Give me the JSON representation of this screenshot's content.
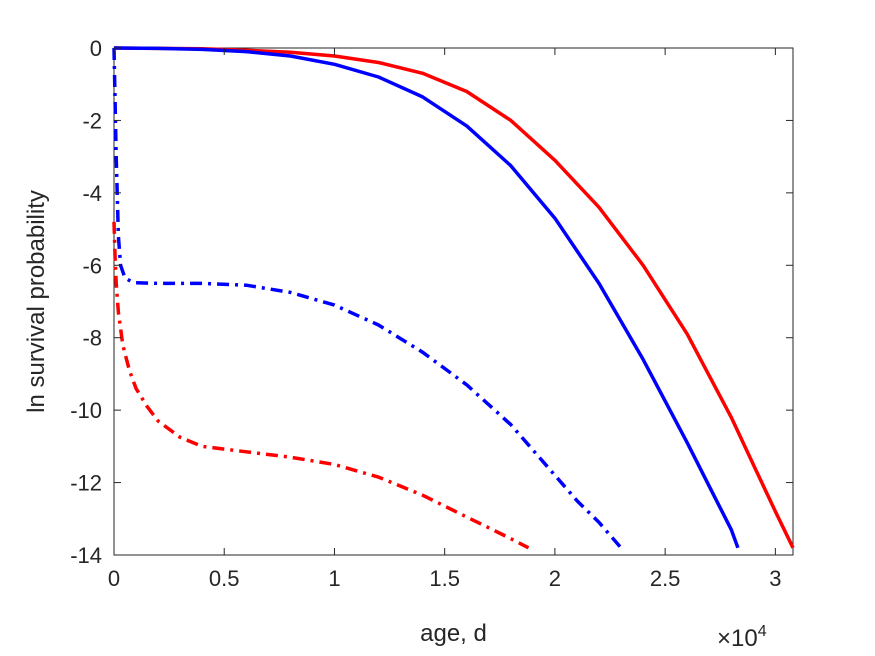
{
  "chart_data": {
    "type": "line",
    "title": "",
    "xlabel": "age, d",
    "ylabel": "ln survival probability",
    "x_exponent_label": {
      "base": "×10",
      "exponent": "4"
    },
    "xlim": [
      0,
      30800
    ],
    "ylim": [
      -14,
      0
    ],
    "xticks": [
      0,
      5000,
      10000,
      15000,
      20000,
      25000,
      30000
    ],
    "xtick_labels": [
      "0",
      "0.5",
      "1",
      "1.5",
      "2",
      "2.5",
      "3"
    ],
    "yticks": [
      0,
      -2,
      -4,
      -6,
      -8,
      -10,
      -12,
      -14
    ],
    "ytick_labels": [
      "0",
      "-2",
      "-4",
      "-6",
      "-8",
      "-10",
      "-12",
      "-14"
    ],
    "grid": false,
    "box": true,
    "series": [
      {
        "color": "#ff0000",
        "style": "solid",
        "x": [
          0,
          2000,
          4000,
          6000,
          8000,
          10000,
          12000,
          14000,
          16000,
          18000,
          20000,
          22000,
          24000,
          26000,
          28000,
          29000,
          30000,
          30800
        ],
        "y": [
          0,
          -0.01,
          -0.02,
          -0.06,
          -0.12,
          -0.22,
          -0.4,
          -0.7,
          -1.2,
          -2.0,
          -3.1,
          -4.4,
          -6.0,
          -7.9,
          -10.2,
          -11.5,
          -12.8,
          -13.8
        ]
      },
      {
        "color": "#0000ff",
        "style": "solid",
        "x": [
          0,
          2000,
          4000,
          6000,
          8000,
          10000,
          12000,
          14000,
          16000,
          18000,
          20000,
          22000,
          24000,
          26000,
          27000,
          28000,
          28300
        ],
        "y": [
          0,
          -0.01,
          -0.04,
          -0.1,
          -0.22,
          -0.45,
          -0.8,
          -1.35,
          -2.15,
          -3.25,
          -4.7,
          -6.5,
          -8.6,
          -10.9,
          -12.1,
          -13.3,
          -13.8
        ]
      },
      {
        "color": "#0000ff",
        "style": "dash-dot",
        "x": [
          0,
          50,
          100,
          200,
          300,
          500,
          800,
          1000,
          2000,
          4000,
          6000,
          8000,
          10000,
          12000,
          14000,
          16000,
          18000,
          20000,
          21000,
          22000,
          23000
        ],
        "y": [
          0,
          -1.5,
          -3.0,
          -5.2,
          -6.0,
          -6.35,
          -6.45,
          -6.48,
          -6.5,
          -6.5,
          -6.55,
          -6.75,
          -7.1,
          -7.65,
          -8.4,
          -9.3,
          -10.4,
          -11.8,
          -12.5,
          -13.1,
          -13.8
        ]
      },
      {
        "color": "#ff0000",
        "style": "dash-dot",
        "x": [
          0,
          50,
          100,
          200,
          400,
          700,
          1000,
          1500,
          2000,
          3000,
          4000,
          6000,
          8000,
          10000,
          12000,
          14000,
          16000,
          17000,
          18000,
          18800
        ],
        "y": [
          -4.8,
          -5.8,
          -6.5,
          -7.3,
          -8.2,
          -8.9,
          -9.4,
          -9.9,
          -10.3,
          -10.75,
          -11.0,
          -11.15,
          -11.3,
          -11.5,
          -11.85,
          -12.35,
          -12.95,
          -13.25,
          -13.55,
          -13.8
        ]
      }
    ]
  }
}
